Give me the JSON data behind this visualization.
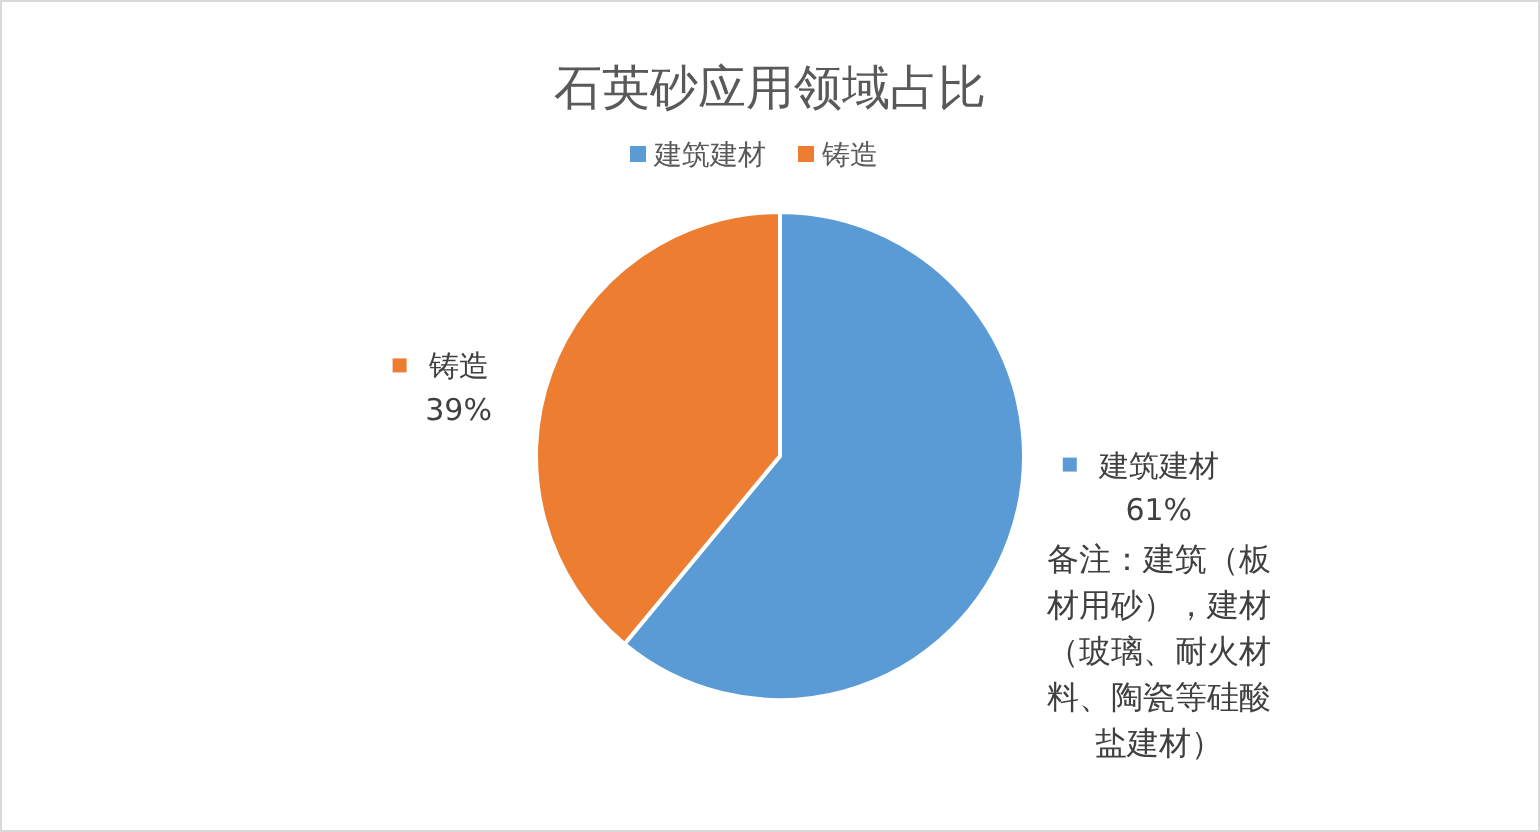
{
  "chart_data": {
    "type": "pie",
    "title": "石英砂应用领域占比",
    "categories": [
      "建筑建材",
      "铸造"
    ],
    "values": [
      61,
      39
    ],
    "colors": [
      "#5b9bd5",
      "#ed7d31"
    ],
    "value_labels": [
      "61%",
      "39%"
    ],
    "legend": "top",
    "annotations": [
      "备注：建筑（板材用砂），建材（玻璃、耐火材料、陶瓷等硅酸盐建材）"
    ]
  }
}
